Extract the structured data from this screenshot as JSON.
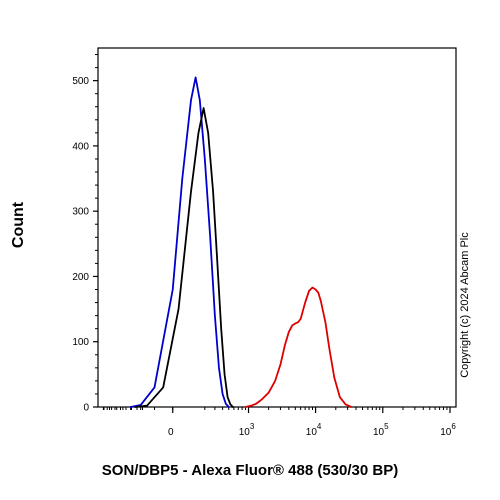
{
  "chart_data": {
    "type": "line",
    "xlabel": "SON/DBP5 - Alexa Fluor® 488 (530/30 BP)",
    "ylabel": "Count",
    "ylim": [
      0,
      550
    ],
    "yticks": [
      0,
      100,
      200,
      300,
      400,
      500
    ],
    "xscale": "biexponential",
    "xticks": [
      {
        "value": 0,
        "label": "0",
        "sup": ""
      },
      {
        "value": 1000,
        "label": "10",
        "sup": "3"
      },
      {
        "value": 10000,
        "label": "10",
        "sup": "4"
      },
      {
        "value": 100000,
        "label": "10",
        "sup": "5"
      },
      {
        "value": 1000000,
        "label": "10",
        "sup": "6"
      }
    ],
    "annotation": "Copyright (c) 2024 Abcam Plc",
    "series": [
      {
        "color": "#0000cc",
        "points": [
          [
            -300,
            0
          ],
          [
            -200,
            3
          ],
          [
            -100,
            30
          ],
          [
            0,
            180
          ],
          [
            50,
            350
          ],
          [
            100,
            470
          ],
          [
            130,
            505
          ],
          [
            160,
            470
          ],
          [
            200,
            380
          ],
          [
            250,
            260
          ],
          [
            300,
            140
          ],
          [
            350,
            60
          ],
          [
            400,
            20
          ],
          [
            450,
            5
          ],
          [
            500,
            0
          ]
        ]
      },
      {
        "color": "#000000",
        "points": [
          [
            -250,
            0
          ],
          [
            -150,
            2
          ],
          [
            -50,
            30
          ],
          [
            30,
            150
          ],
          [
            100,
            330
          ],
          [
            150,
            420
          ],
          [
            190,
            458
          ],
          [
            230,
            420
          ],
          [
            280,
            330
          ],
          [
            330,
            220
          ],
          [
            380,
            120
          ],
          [
            430,
            50
          ],
          [
            480,
            15
          ],
          [
            530,
            4
          ],
          [
            580,
            0
          ]
        ]
      },
      {
        "color": "#dd0000",
        "points": [
          [
            900,
            0
          ],
          [
            1100,
            2
          ],
          [
            1300,
            5
          ],
          [
            1600,
            12
          ],
          [
            2000,
            22
          ],
          [
            2500,
            40
          ],
          [
            3000,
            65
          ],
          [
            3500,
            95
          ],
          [
            4000,
            115
          ],
          [
            4500,
            125
          ],
          [
            5000,
            128
          ],
          [
            5500,
            130
          ],
          [
            6000,
            135
          ],
          [
            7000,
            160
          ],
          [
            8000,
            178
          ],
          [
            9000,
            183
          ],
          [
            10000,
            180
          ],
          [
            11000,
            175
          ],
          [
            12000,
            162
          ],
          [
            14000,
            130
          ],
          [
            16000,
            90
          ],
          [
            19000,
            45
          ],
          [
            23000,
            15
          ],
          [
            28000,
            4
          ],
          [
            34000,
            0
          ]
        ]
      }
    ]
  }
}
